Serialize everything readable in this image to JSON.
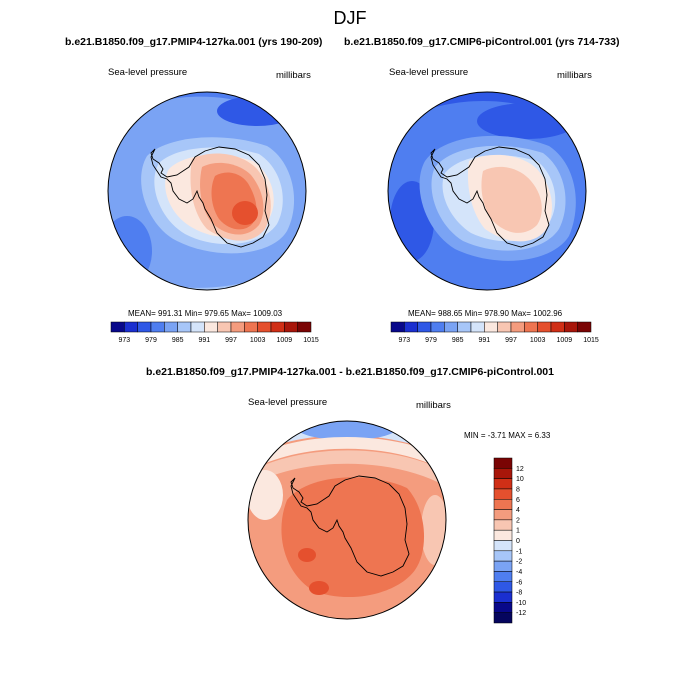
{
  "figure": {
    "season_title": "DJF"
  },
  "panels": [
    {
      "title": "b.e21.B1850.f09_g17.PMIP4-127ka.001 (yrs 190-209)",
      "left_label": "Sea-level pressure",
      "right_label": "millibars",
      "stats": "MEAN= 991.31   Min= 979.65   Max= 1009.03"
    },
    {
      "title": "b.e21.B1850.f09_g17.CMIP6-piControl.001 (yrs 714-733)",
      "left_label": "Sea-level pressure",
      "right_label": "millibars",
      "stats": "MEAN= 988.65   Min= 978.90   Max= 1002.96"
    },
    {
      "title": "b.e21.B1850.f09_g17.PMIP4-127ka.001 - b.e21.B1850.f09_g17.CMIP6-piControl.001",
      "left_label": "Sea-level pressure",
      "right_label": "millibars",
      "stats": "MIN =  -3.71 MAX =   6.33"
    }
  ],
  "colorbar_abs": {
    "tick_labels": [
      "973",
      "979",
      "985",
      "991",
      "997",
      "1003",
      "1009",
      "1015"
    ],
    "colors": [
      "#08088a",
      "#1a2fd0",
      "#2f58e6",
      "#4f7ef0",
      "#7aa3f4",
      "#a7c6f8",
      "#d4e4fa",
      "#fbe8df",
      "#f8c6b2",
      "#f49c7e",
      "#ee7551",
      "#e5502e",
      "#d02f16",
      "#a8160a",
      "#7a0404"
    ]
  },
  "colorbar_diff": {
    "tick_labels": [
      "12",
      "10",
      "8",
      "6",
      "4",
      "2",
      "1",
      "0",
      "-1",
      "-2",
      "-4",
      "-6",
      "-8",
      "-10",
      "-12"
    ],
    "colors": [
      "#7a0404",
      "#a8160a",
      "#d02f16",
      "#e5502e",
      "#ee7551",
      "#f49c7e",
      "#f8c6b2",
      "#fbe8df",
      "#d4e4fa",
      "#a7c6f8",
      "#7aa3f4",
      "#4f7ef0",
      "#2f58e6",
      "#1a2fd0",
      "#08088a",
      "#05055e"
    ]
  },
  "map_colors": {
    "deep_blue": "#2f58e6",
    "mid_blue": "#4f7ef0",
    "light_blue": "#7aa3f4",
    "pale_blue": "#a7c6f8",
    "paler_blue": "#d4e4fa",
    "cream": "#fbe8df",
    "salmon": "#f8c6b2",
    "orange_light": "#f49c7e",
    "orange": "#ee7551",
    "red_orange": "#e5502e"
  }
}
